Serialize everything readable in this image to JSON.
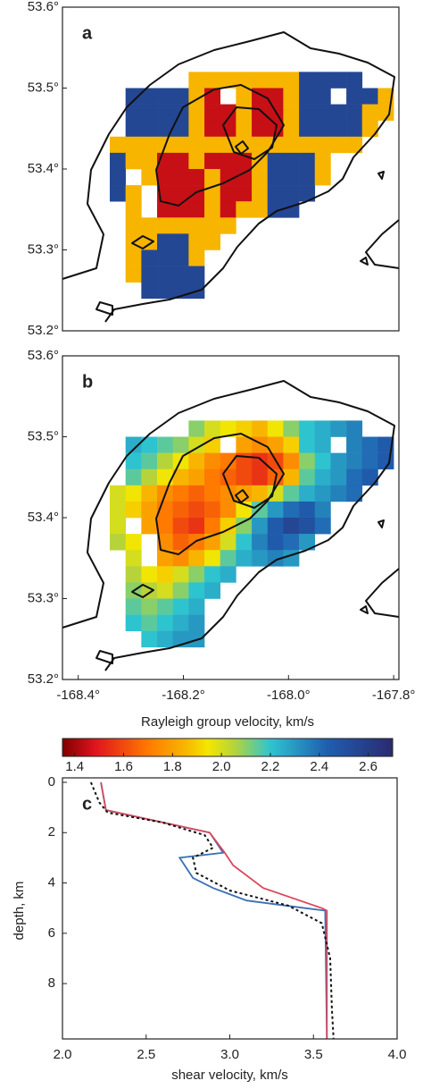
{
  "chart_data": [
    {
      "type": "heatmap",
      "panel_label": "a",
      "xlim": [
        -168.43,
        -167.79
      ],
      "ylim": [
        53.2,
        53.6
      ],
      "yticks": [
        {
          "value": 53.2,
          "label": "53.2°"
        },
        {
          "value": 53.3,
          "label": "53.3°"
        },
        {
          "value": 53.4,
          "label": "53.4°"
        },
        {
          "value": 53.5,
          "label": "53.5°"
        },
        {
          "value": 53.6,
          "label": "53.6°"
        }
      ],
      "clim": [
        1.35,
        2.7
      ],
      "x": [
        -168.325,
        -168.295,
        -168.265,
        -168.235,
        -168.205,
        -168.175,
        -168.145,
        -168.115,
        -168.085,
        -168.055,
        -168.025,
        -167.995,
        -167.965,
        -167.935,
        -167.905,
        -167.875,
        -167.845,
        -167.815
      ],
      "y": [
        53.51,
        53.49,
        53.47,
        53.45,
        53.43,
        53.41,
        53.39,
        53.37,
        53.35,
        53.33,
        53.31,
        53.29,
        53.27,
        53.25
      ],
      "z": [
        [
          null,
          null,
          null,
          null,
          null,
          1.85,
          1.85,
          1.85,
          1.85,
          1.85,
          1.85,
          1.85,
          2.55,
          2.55,
          2.55,
          2.55,
          null,
          null
        ],
        [
          null,
          2.55,
          2.55,
          2.55,
          2.55,
          1.85,
          1.45,
          null,
          1.85,
          1.45,
          1.45,
          1.85,
          2.55,
          2.55,
          null,
          2.55,
          2.55,
          1.85
        ],
        [
          null,
          2.55,
          2.55,
          2.55,
          2.55,
          1.85,
          1.45,
          1.45,
          1.85,
          1.45,
          1.45,
          1.85,
          2.55,
          2.55,
          2.55,
          2.55,
          1.85,
          1.85
        ],
        [
          null,
          2.55,
          2.55,
          2.55,
          2.55,
          1.85,
          1.45,
          1.45,
          1.85,
          1.45,
          1.45,
          1.85,
          2.55,
          2.55,
          2.55,
          2.55,
          1.85,
          null
        ],
        [
          1.85,
          1.85,
          1.85,
          1.85,
          1.85,
          1.85,
          1.85,
          1.85,
          1.85,
          1.85,
          1.85,
          1.85,
          1.85,
          1.85,
          1.85,
          1.85,
          null,
          null
        ],
        [
          2.55,
          1.85,
          1.85,
          1.45,
          1.45,
          1.85,
          1.45,
          1.45,
          1.45,
          1.85,
          2.55,
          2.55,
          2.55,
          1.85,
          null,
          null,
          null,
          null
        ],
        [
          2.55,
          null,
          1.85,
          1.45,
          1.45,
          1.45,
          1.85,
          1.45,
          1.45,
          1.85,
          2.55,
          2.55,
          2.55,
          1.85,
          null,
          null,
          null,
          null
        ],
        [
          2.55,
          1.85,
          null,
          1.45,
          1.45,
          1.45,
          1.85,
          1.45,
          1.45,
          1.85,
          2.55,
          2.55,
          2.55,
          null,
          null,
          null,
          null,
          null
        ],
        [
          null,
          1.85,
          null,
          1.45,
          1.45,
          1.45,
          1.85,
          1.45,
          1.85,
          1.85,
          2.55,
          2.55,
          null,
          null,
          null,
          null,
          null,
          null
        ],
        [
          null,
          1.85,
          1.85,
          1.85,
          1.85,
          1.85,
          1.85,
          1.85,
          null,
          null,
          null,
          null,
          null,
          null,
          null,
          null,
          null,
          null
        ],
        [
          null,
          1.85,
          1.85,
          2.55,
          2.55,
          1.85,
          1.85,
          null,
          null,
          null,
          null,
          null,
          null,
          null,
          null,
          null,
          null,
          null
        ],
        [
          null,
          1.85,
          2.55,
          2.55,
          2.55,
          1.85,
          null,
          null,
          null,
          null,
          null,
          null,
          null,
          null,
          null,
          null,
          null,
          null
        ],
        [
          null,
          1.85,
          2.55,
          2.55,
          2.55,
          2.55,
          null,
          null,
          null,
          null,
          null,
          null,
          null,
          null,
          null,
          null,
          null,
          null
        ],
        [
          null,
          null,
          2.55,
          2.55,
          2.55,
          2.55,
          null,
          null,
          null,
          null,
          null,
          null,
          null,
          null,
          null,
          null,
          null,
          null
        ]
      ]
    },
    {
      "type": "heatmap",
      "panel_label": "b",
      "xlim": [
        -168.43,
        -167.79
      ],
      "ylim": [
        53.2,
        53.6
      ],
      "xticks": [
        {
          "value": -168.4,
          "label": "-168.4°"
        },
        {
          "value": -168.2,
          "label": "-168.2°"
        },
        {
          "value": -168.0,
          "label": "-168.0°"
        },
        {
          "value": -167.8,
          "label": "-167.8°"
        }
      ],
      "yticks": [
        {
          "value": 53.2,
          "label": "53.2°"
        },
        {
          "value": 53.3,
          "label": "53.3°"
        },
        {
          "value": 53.4,
          "label": "53.4°"
        },
        {
          "value": 53.5,
          "label": "53.5°"
        },
        {
          "value": 53.6,
          "label": "53.6°"
        }
      ],
      "clim": [
        1.35,
        2.7
      ],
      "colorbar_label": "Rayleigh group velocity, km/s",
      "colorbar_ticks": [
        1.4,
        1.6,
        1.8,
        {
          "value": 2,
          "label": "2.0"
        },
        2.2,
        2.4,
        2.6
      ],
      "x": [
        -168.325,
        -168.295,
        -168.265,
        -168.235,
        -168.205,
        -168.175,
        -168.145,
        -168.115,
        -168.085,
        -168.055,
        -168.025,
        -167.995,
        -167.965,
        -167.935,
        -167.905,
        -167.875,
        -167.845,
        -167.815
      ],
      "y": [
        53.51,
        53.49,
        53.47,
        53.45,
        53.43,
        53.41,
        53.39,
        53.37,
        53.35,
        53.33,
        53.31,
        53.29,
        53.27,
        53.25
      ],
      "z": [
        [
          null,
          null,
          null,
          null,
          null,
          2.1,
          2.0,
          1.95,
          1.9,
          1.85,
          1.95,
          2.1,
          2.2,
          2.25,
          2.3,
          2.35,
          null,
          null
        ],
        [
          null,
          2.25,
          2.2,
          2.15,
          2.1,
          2.0,
          1.9,
          null,
          1.8,
          1.75,
          1.8,
          1.9,
          2.2,
          2.25,
          null,
          2.35,
          2.4,
          2.45
        ],
        [
          null,
          2.2,
          2.15,
          2.05,
          1.95,
          1.85,
          1.75,
          1.7,
          1.6,
          1.55,
          1.6,
          1.75,
          2.1,
          2.2,
          2.3,
          2.35,
          2.4,
          2.45
        ],
        [
          null,
          2.15,
          2.05,
          1.95,
          1.85,
          1.8,
          1.7,
          1.65,
          1.6,
          1.55,
          1.65,
          1.85,
          2.15,
          2.25,
          2.3,
          2.4,
          2.45,
          null
        ],
        [
          2.0,
          1.95,
          1.85,
          1.75,
          1.7,
          1.65,
          1.7,
          1.75,
          1.8,
          1.85,
          2.0,
          2.15,
          2.25,
          2.3,
          2.35,
          2.4,
          null,
          null
        ],
        [
          2.0,
          1.9,
          1.8,
          1.7,
          1.65,
          1.6,
          1.65,
          1.75,
          1.95,
          2.15,
          2.3,
          2.4,
          2.45,
          2.35,
          null,
          null,
          null,
          null
        ],
        [
          2.0,
          null,
          1.8,
          1.7,
          1.6,
          1.55,
          1.7,
          1.9,
          2.1,
          2.3,
          2.45,
          2.55,
          2.5,
          2.4,
          null,
          null,
          null,
          null
        ],
        [
          2.05,
          1.95,
          null,
          1.75,
          1.65,
          1.7,
          1.8,
          2.0,
          2.2,
          2.35,
          2.45,
          2.4,
          2.3,
          null,
          null,
          null,
          null,
          null
        ],
        [
          null,
          2.0,
          null,
          1.8,
          1.75,
          1.85,
          1.95,
          2.15,
          2.25,
          2.3,
          2.35,
          2.3,
          null,
          null,
          null,
          null,
          null,
          null
        ],
        [
          null,
          2.05,
          1.95,
          1.9,
          2.0,
          2.1,
          2.2,
          2.25,
          null,
          null,
          null,
          null,
          null,
          null,
          null,
          null,
          null,
          null
        ],
        [
          null,
          2.1,
          2.05,
          2.0,
          2.1,
          2.2,
          2.25,
          null,
          null,
          null,
          null,
          null,
          null,
          null,
          null,
          null,
          null,
          null
        ],
        [
          null,
          2.15,
          2.1,
          2.15,
          2.2,
          2.25,
          null,
          null,
          null,
          null,
          null,
          null,
          null,
          null,
          null,
          null,
          null,
          null
        ],
        [
          null,
          2.2,
          2.15,
          2.2,
          2.25,
          2.3,
          null,
          null,
          null,
          null,
          null,
          null,
          null,
          null,
          null,
          null,
          null,
          null
        ],
        [
          null,
          null,
          2.2,
          2.25,
          2.3,
          2.3,
          null,
          null,
          null,
          null,
          null,
          null,
          null,
          null,
          null,
          null,
          null,
          null
        ]
      ]
    },
    {
      "type": "line",
      "panel_label": "c",
      "x_label": "shear velocity, km/s",
      "y_label": "depth, km",
      "xlim": [
        2,
        4
      ],
      "ylim": [
        0,
        10.2
      ],
      "y_inverted": true,
      "xticks": [
        {
          "value": 2,
          "label": "2.0"
        },
        2.5,
        {
          "value": 3,
          "label": "3.0"
        },
        3.5,
        {
          "value": 4,
          "label": "4.0"
        }
      ],
      "yticks": [
        0,
        2,
        4,
        6,
        8
      ],
      "series": [
        {
          "color": "#3d6fb4",
          "linestyle": "solid",
          "x": [
            2.23,
            2.26,
            2.88,
            2.96,
            2.7,
            2.78,
            2.9,
            3.1,
            3.45,
            3.57,
            3.58
          ],
          "y": [
            0,
            1.1,
            2.0,
            2.8,
            3.0,
            3.8,
            4.2,
            4.7,
            5.0,
            5.1,
            10.2
          ]
        },
        {
          "color": "#d9485a",
          "linestyle": "solid",
          "x": [
            2.23,
            2.26,
            2.88,
            2.97,
            3.02,
            3.2,
            3.55,
            3.58,
            3.58
          ],
          "y": [
            0,
            1.1,
            2.0,
            2.8,
            3.3,
            4.2,
            5.0,
            5.1,
            10.2
          ]
        },
        {
          "color": "#111111",
          "linestyle": "dotted",
          "x": [
            2.17,
            2.22,
            2.27,
            2.6,
            2.85,
            2.9,
            2.78,
            2.8,
            3.0,
            3.35,
            3.55,
            3.6,
            3.61,
            3.62
          ],
          "y": [
            0,
            0.8,
            1.2,
            1.6,
            2.1,
            2.6,
            3.0,
            3.6,
            4.3,
            4.9,
            5.6,
            7.0,
            9.0,
            10.2
          ]
        }
      ]
    }
  ]
}
